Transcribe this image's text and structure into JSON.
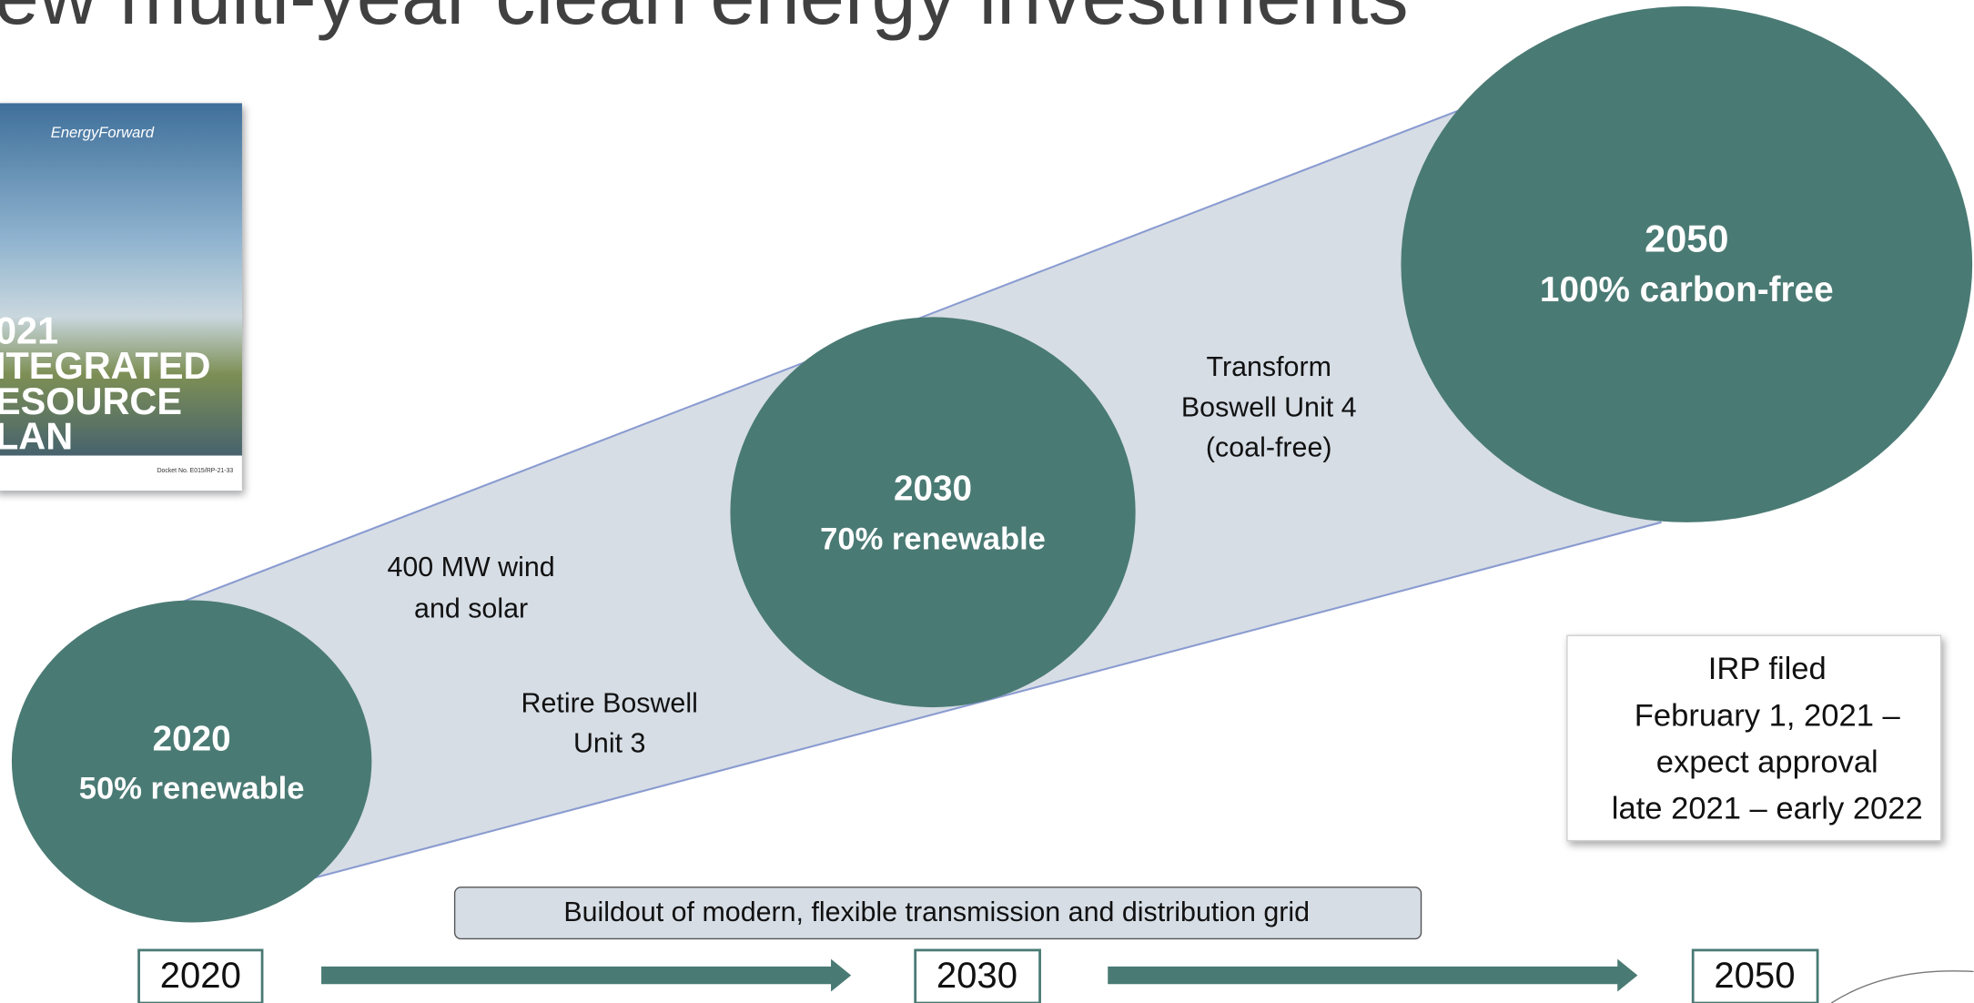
{
  "title": "ew multi-year clean energy investments",
  "cover": {
    "brand": "EnergyForward",
    "lines": [
      "021",
      "ITEGRATED",
      "ESOURCE",
      "LAN"
    ],
    "docket": "Docket No. E015/RP-21-33"
  },
  "milestones": [
    {
      "year": "2020",
      "goal": "50% renewable"
    },
    {
      "year": "2030",
      "goal": "70% renewable"
    },
    {
      "year": "2050",
      "goal": "100% carbon-free"
    }
  ],
  "notes": [
    {
      "lines": [
        "400 MW wind",
        "and solar"
      ]
    },
    {
      "lines": [
        "Retire Boswell",
        "Unit 3"
      ]
    },
    {
      "lines": [
        "Transform",
        "Boswell Unit 4",
        "(coal-free)"
      ]
    }
  ],
  "filing": {
    "lines": [
      "IRP filed",
      "February 1, 2021 –",
      "expect approval",
      "late 2021 – early 2022"
    ]
  },
  "grid_banner": "Buildout of modern, flexible transmission and distribution grid",
  "timeline": [
    "2020",
    "2030",
    "2050"
  ]
}
